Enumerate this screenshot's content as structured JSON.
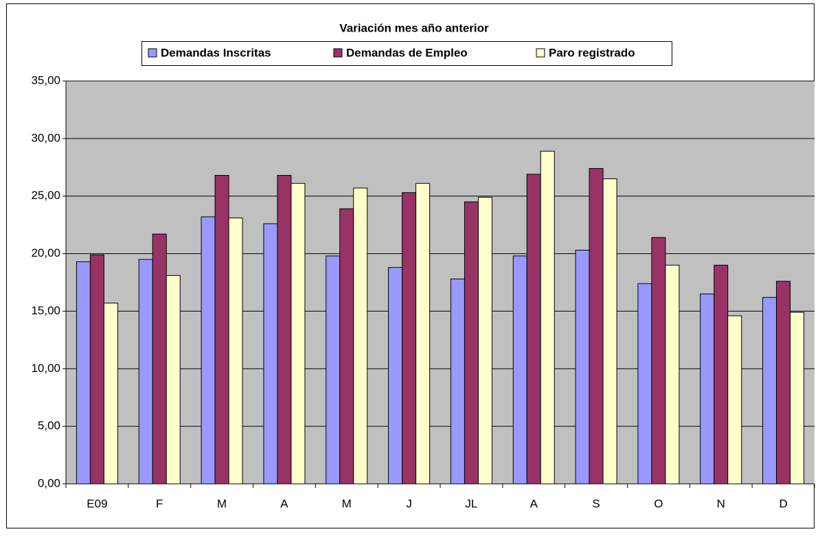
{
  "chart_data": {
    "type": "bar",
    "title": "Variación mes año anterior",
    "categories": [
      "E09",
      "F",
      "M",
      "A",
      "M",
      "J",
      "JL",
      "A",
      "S",
      "O",
      "N",
      "D"
    ],
    "series": [
      {
        "name": "Demandas Inscritas",
        "color": "#9999ff",
        "values": [
          19.3,
          19.5,
          23.2,
          22.6,
          19.8,
          18.8,
          17.8,
          19.8,
          20.3,
          17.4,
          16.5,
          16.2
        ]
      },
      {
        "name": "Demandas de Empleo",
        "color": "#993366",
        "values": [
          19.9,
          21.7,
          26.8,
          26.8,
          23.9,
          25.3,
          24.5,
          26.9,
          27.4,
          21.4,
          19.0,
          17.6
        ]
      },
      {
        "name": "Paro registrado",
        "color": "#ffffcc",
        "values": [
          15.7,
          18.1,
          23.1,
          26.1,
          25.7,
          26.1,
          24.9,
          28.9,
          26.5,
          19.0,
          14.6,
          14.9
        ]
      }
    ],
    "ylim": [
      0,
      35
    ],
    "yticks": [
      {
        "value": 0,
        "label": "0,00"
      },
      {
        "value": 5,
        "label": "5,00"
      },
      {
        "value": 10,
        "label": "10,00"
      },
      {
        "value": 15,
        "label": "15,00"
      },
      {
        "value": 20,
        "label": "20,00"
      },
      {
        "value": 25,
        "label": "25,00"
      },
      {
        "value": 30,
        "label": "30,00"
      },
      {
        "value": 35,
        "label": "35,00"
      }
    ],
    "grid": true,
    "legend": "top",
    "plot_background": "#c0c0c0"
  }
}
